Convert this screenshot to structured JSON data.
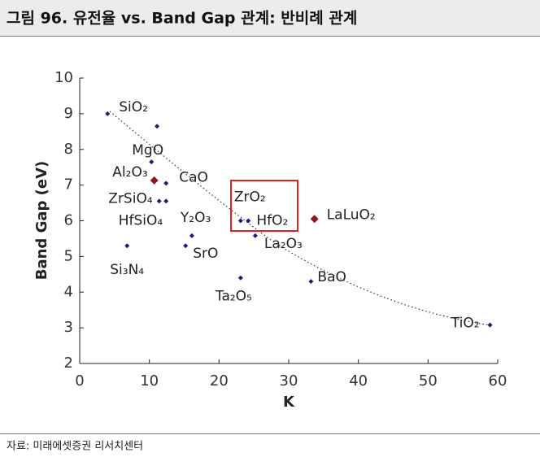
{
  "header": {
    "title": "그림 96. 유전율 vs. Band Gap 관계: 반비례 관계"
  },
  "chart_data": {
    "type": "scatter",
    "xlabel": "K",
    "ylabel": "Band Gap (eV)",
    "xlim": [
      0,
      60
    ],
    "xticks": [
      0,
      10,
      20,
      30,
      40,
      50,
      60
    ],
    "ylim": [
      2,
      10
    ],
    "yticks": [
      2,
      3,
      4,
      5,
      6,
      7,
      8,
      9,
      10
    ],
    "series": [
      {
        "color": "#1c1c78",
        "x": [
          4,
          11.1,
          10.3,
          12.4,
          11.4,
          12.4,
          6.8,
          15.2,
          16.1,
          23.1,
          24.2,
          25.2,
          23.1,
          33.2,
          58.9
        ],
        "values": [
          9.0,
          8.65,
          7.65,
          7.05,
          6.55,
          6.55,
          5.3,
          5.3,
          5.58,
          6.0,
          6.0,
          5.58,
          4.4,
          4.3,
          3.08
        ],
        "labels": [
          "SiO₂",
          null,
          "MgO",
          "CaO",
          "ZrSiO₄",
          "HfSiO₄",
          "Si₃N₄",
          "SrO",
          "Y₂O₃",
          "ZrO₂",
          "HfO₂",
          "La₂O₃",
          "Ta₂O₅",
          "BaO",
          "TiO₂"
        ]
      },
      {
        "color": "#8b1a1a",
        "x": [
          10.7,
          33.7
        ],
        "values": [
          7.13,
          6.05
        ],
        "labels": [
          "Al₂O₃",
          "LaLuO₂"
        ]
      }
    ]
  },
  "footer": {
    "source": "자료: 미래에셋증권 리서치센터"
  }
}
